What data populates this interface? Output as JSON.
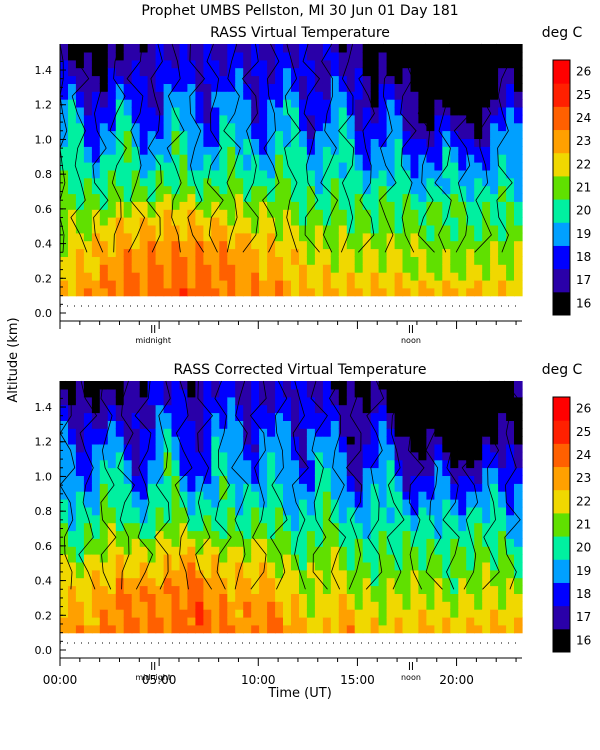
{
  "header": {
    "line1": "Prophet  UMBS Pellston, MI  30 Jun 01 Day 181"
  },
  "shared": {
    "ylabel": "Altitude (km)",
    "xlabel": "Time (UT)",
    "midnight_label": "midnight",
    "noon_label": "noon",
    "midnight_hour": 4.7,
    "noon_hour": 17.7,
    "min_altitude_km": 0.04
  },
  "chart_data": [
    {
      "type": "heatmap",
      "title": "RASS Virtual Temperature",
      "colorbar_label": "deg C",
      "xlabel": "",
      "ylabel": "Altitude (km)",
      "xlim": [
        0,
        23.3
      ],
      "ylim": [
        0.0,
        1.55
      ],
      "yticks": [
        "0.0",
        "0.2",
        "0.4",
        "0.6",
        "0.8",
        "1.0",
        "1.2",
        "1.4"
      ],
      "xticks": [],
      "colorbar_ticks": [
        "26",
        "25",
        "24",
        "23",
        "22",
        "21",
        "20",
        "19",
        "18",
        "17",
        "16"
      ],
      "colorbar_colors": [
        "#000000",
        "#2a00a8",
        "#0000ff",
        "#00a0ff",
        "#00f0a0",
        "#60e000",
        "#f0d800",
        "#ffa000",
        "#ff6000",
        "#ff2000",
        "#ff0000"
      ],
      "variant": "raw",
      "approx_values_degC": {
        "surface_night": 25,
        "surface_day": 21,
        "mid_level_night": 23,
        "upper_level_day": 18,
        "minimum_near_20UT_1.3km": 16
      }
    },
    {
      "type": "heatmap",
      "title": "RASS Corrected Virtual Temperature",
      "colorbar_label": "deg C",
      "xlabel": "Time (UT)",
      "ylabel": "Altitude (km)",
      "xlim": [
        0,
        23.3
      ],
      "ylim": [
        0.0,
        1.55
      ],
      "yticks": [
        "0.0",
        "0.2",
        "0.4",
        "0.6",
        "0.8",
        "1.0",
        "1.2",
        "1.4"
      ],
      "xticks": [
        "00:00",
        "05:00",
        "10:00",
        "15:00",
        "20:00"
      ],
      "colorbar_ticks": [
        "26",
        "25",
        "24",
        "23",
        "22",
        "21",
        "20",
        "19",
        "18",
        "17",
        "16"
      ],
      "colorbar_colors": [
        "#000000",
        "#2a00a8",
        "#0000ff",
        "#00a0ff",
        "#00f0a0",
        "#60e000",
        "#f0d800",
        "#ffa000",
        "#ff6000",
        "#ff2000",
        "#ff0000"
      ],
      "variant": "corrected",
      "approx_values_degC": {
        "surface_night": 25,
        "surface_day": 21,
        "mid_level_night": 23,
        "upper_level_day": 18,
        "minimum_near_20UT_1.3km": 16
      }
    }
  ]
}
